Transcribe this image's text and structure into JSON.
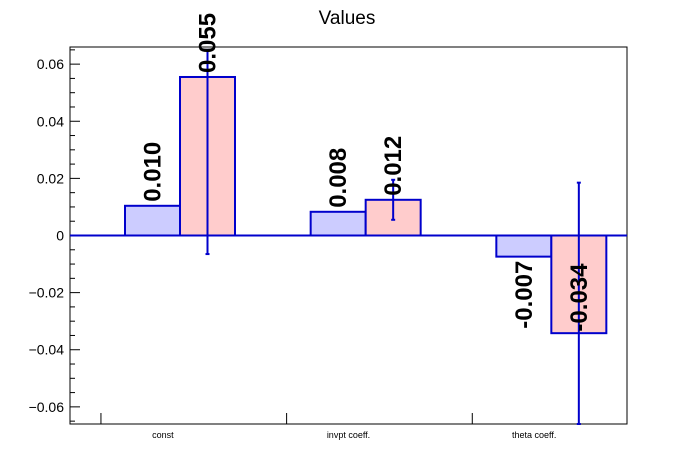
{
  "chart_data": {
    "type": "bar",
    "title": "Values",
    "xlabel": "",
    "ylabel": "",
    "categories": [
      "const",
      "invpt coeff.",
      "theta coeff."
    ],
    "ylim": [
      -0.066,
      0.066
    ],
    "yticks": [
      -0.06,
      -0.04,
      -0.02,
      0,
      0.02,
      0.04,
      0.06
    ],
    "ytick_labels": [
      "−0.06",
      "−0.04",
      "−0.02",
      "0",
      "0.02",
      "0.04",
      "0.06"
    ],
    "grid": false,
    "series": [
      {
        "color_fill": "#ccccff",
        "color_line": "#0000cc",
        "values": [
          0.0104,
          0.0083,
          -0.0074
        ],
        "labels": [
          "0.010",
          "0.008",
          "-0.007"
        ]
      },
      {
        "color_fill": "#ffcccc",
        "color_line": "#0000cc",
        "values": [
          0.0555,
          0.0125,
          -0.0342
        ],
        "labels": [
          "0.055",
          "0.012",
          "-0.034"
        ],
        "error": [
          [
            -0.0065,
            0.065
          ],
          [
            0.0055,
            0.0195
          ],
          [
            -0.066,
            0.0185
          ]
        ]
      }
    ]
  }
}
